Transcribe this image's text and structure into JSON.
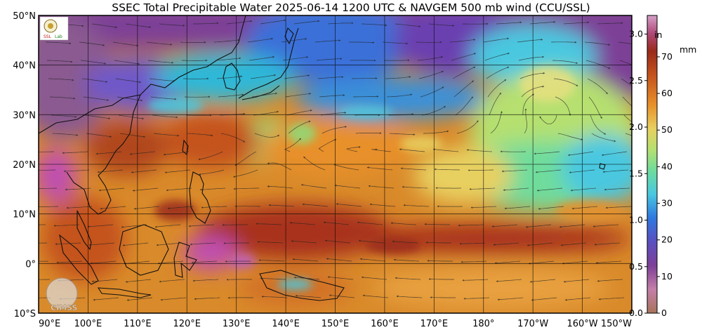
{
  "title": "SSEC Total Precipitable Water  2025-06-14 1200 UTC & NAVGEM 500 mb wind (CCU/SSL)",
  "map": {
    "lat_labels": [
      "50°N",
      "40°N",
      "30°N",
      "20°N",
      "10°N",
      "0°",
      "10°S"
    ],
    "lon_labels": [
      "90°E",
      "100°E",
      "110°E",
      "120°E",
      "130°E",
      "140°E",
      "150°E",
      "160°E",
      "170°E",
      "180°",
      "170°W",
      "160°W",
      "150°W"
    ]
  },
  "colorbar": {
    "inch_ticks": [
      "3.0",
      "2.5",
      "2.0",
      "1.5",
      "1.0",
      "0.5",
      "0.0"
    ],
    "inch_unit": "in",
    "mm_ticks": [
      "70",
      "60",
      "50",
      "40",
      "30",
      "20",
      "10",
      "0"
    ],
    "mm_unit": "mm"
  },
  "logos": {
    "top_left": "CCU/SSL logo",
    "bottom_left_text": "CIMSS"
  },
  "colors": {
    "dry_purple": "#7d3f97",
    "blue": "#3a78d8",
    "cyan": "#49c8e0",
    "green": "#8fdc7a",
    "yellow": "#e8d060",
    "orange": "#e8902a",
    "red_brown": "#b8461e",
    "magenta": "#c050b0"
  }
}
